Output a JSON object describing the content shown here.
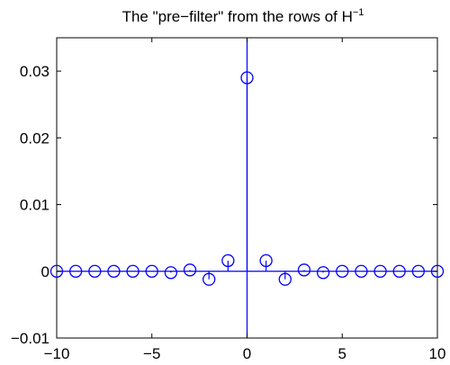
{
  "chart_data": {
    "type": "stem",
    "title": "The \"pre−filter\" from the rows of H",
    "title_superscript": "−1",
    "xlim": [
      -10,
      10
    ],
    "ylim": [
      -0.01,
      0.035
    ],
    "x_ticks": [
      -10,
      -5,
      0,
      5,
      10
    ],
    "x_tick_labels": [
      "−10",
      "−5",
      "0",
      "5",
      "10"
    ],
    "y_ticks": [
      -0.01,
      0,
      0.01,
      0.02,
      0.03
    ],
    "y_tick_labels": [
      "−0.01",
      "0",
      "0.01",
      "0.02",
      "0.03"
    ],
    "grid": false,
    "series": [
      {
        "color": "#0000ff",
        "marker": "circle",
        "points": [
          {
            "x": -10,
            "y": 0
          },
          {
            "x": -9,
            "y": 0
          },
          {
            "x": -8,
            "y": 0
          },
          {
            "x": -7,
            "y": 0
          },
          {
            "x": -6,
            "y": 0
          },
          {
            "x": -5,
            "y": 0
          },
          {
            "x": -4,
            "y": -0.0002
          },
          {
            "x": -3,
            "y": 0.0002
          },
          {
            "x": -2,
            "y": -0.0012
          },
          {
            "x": -1,
            "y": 0.0016
          },
          {
            "x": 0,
            "y": 0.029
          },
          {
            "x": 1,
            "y": 0.0016
          },
          {
            "x": 2,
            "y": -0.0012
          },
          {
            "x": 3,
            "y": 0.0002
          },
          {
            "x": 4,
            "y": -0.0002
          },
          {
            "x": 5,
            "y": 0
          },
          {
            "x": 6,
            "y": 0
          },
          {
            "x": 7,
            "y": 0
          },
          {
            "x": 8,
            "y": 0
          },
          {
            "x": 9,
            "y": 0
          },
          {
            "x": 10,
            "y": 0
          }
        ]
      }
    ],
    "reference_lines": {
      "horizontal_at_y": 0,
      "vertical_at_x": 0,
      "color": "#0000ff"
    }
  }
}
